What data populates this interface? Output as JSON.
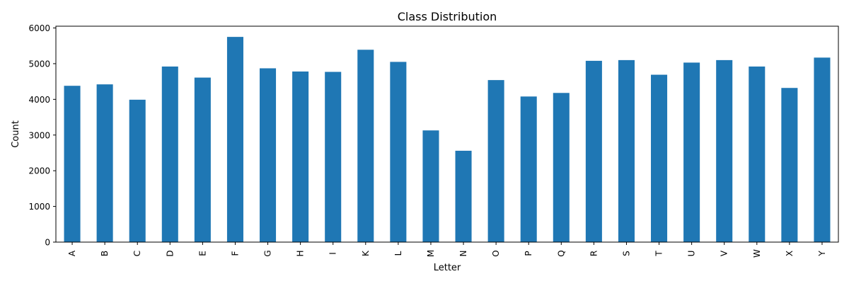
{
  "chart_data": {
    "type": "bar",
    "title": "Class Distribution",
    "xlabel": "Letter",
    "ylabel": "Count",
    "categories": [
      "A",
      "B",
      "C",
      "D",
      "E",
      "F",
      "G",
      "H",
      "I",
      "K",
      "L",
      "M",
      "N",
      "O",
      "P",
      "Q",
      "R",
      "S",
      "T",
      "U",
      "V",
      "W",
      "X",
      "Y"
    ],
    "values": [
      4380,
      4420,
      3990,
      4920,
      4610,
      5750,
      4870,
      4780,
      4770,
      5390,
      5050,
      3130,
      2560,
      4540,
      4080,
      4180,
      5080,
      5100,
      4690,
      5030,
      5100,
      4920,
      4320,
      5170
    ],
    "ylim": [
      0,
      6050
    ],
    "yticks": [
      0,
      1000,
      2000,
      3000,
      4000,
      5000,
      6000
    ],
    "bar_color": "#1f77b4",
    "grid": false,
    "legend": "none"
  }
}
